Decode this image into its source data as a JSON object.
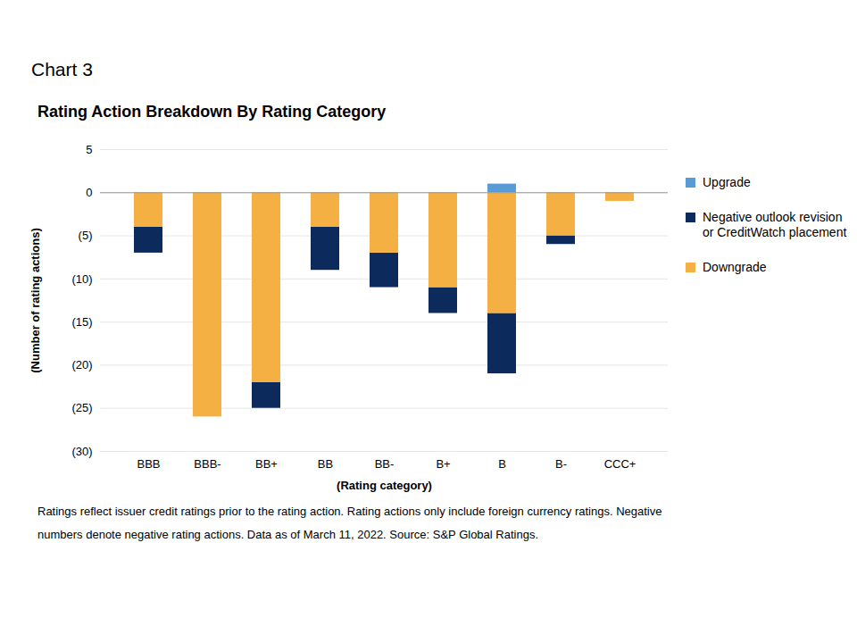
{
  "chart_data": {
    "type": "bar",
    "heading": "Chart 3",
    "title": "Rating Action Breakdown By Rating Category",
    "x_label": "(Rating category)",
    "y_label": "(Number of rating actions)",
    "notes": "Ratings reflect issuer credit ratings prior to the rating action. Rating actions only include foreign currency ratings. Negative numbers denote negative rating actions. Data as of March 11, 2022. Source: S&P Global Ratings.",
    "categories": [
      "BBB",
      "BBB-",
      "BB+",
      "BB",
      "BB-",
      "B+",
      "B",
      "B-",
      "CCC+"
    ],
    "series": [
      {
        "name": "Upgrade",
        "color": "#5b9bd5",
        "values": [
          0,
          0,
          0,
          0,
          0,
          0,
          1,
          0,
          0
        ]
      },
      {
        "name": "Negative outlook revision or CreditWatch placement",
        "color": "#0c2a5c",
        "values": [
          -3,
          0,
          -3,
          -5,
          -4,
          -3,
          -7,
          -1,
          0
        ]
      },
      {
        "name": "Downgrade",
        "color": "#f5b043",
        "values": [
          -4,
          -26,
          -22,
          -4,
          -7,
          -11,
          -14,
          -5,
          -1
        ]
      }
    ],
    "stacked": true,
    "ylim": [
      -30,
      5
    ],
    "yticks": [
      {
        "value": -30,
        "label": "(30)"
      },
      {
        "value": -25,
        "label": "(25)"
      },
      {
        "value": -20,
        "label": "(20)"
      },
      {
        "value": -15,
        "label": "(15)"
      },
      {
        "value": -10,
        "label": "(10)"
      },
      {
        "value": -5,
        "label": "(5)"
      },
      0,
      5
    ],
    "grid": true,
    "legend": "right"
  }
}
